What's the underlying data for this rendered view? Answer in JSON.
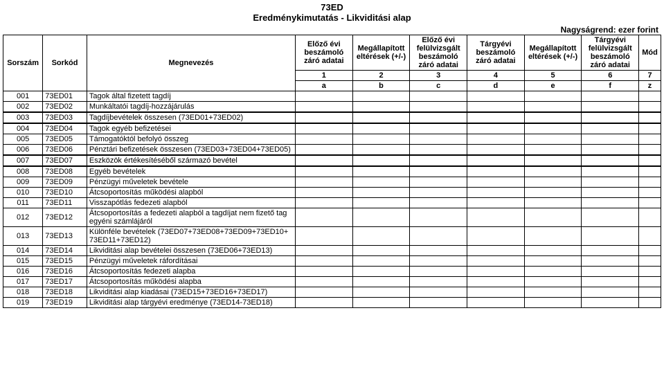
{
  "title": {
    "code": "73ED",
    "name": "Eredménykimutatás - Likviditási alap"
  },
  "unit_line": "Nagyságrend: ezer forint",
  "headers": {
    "sorszam": "Sorszám",
    "sorkod": "Sorkód",
    "megnevezes": "Megnevezés",
    "col1": "Előző évi beszámoló záró adatai",
    "col2": "Megállapított eltérések (+/-)",
    "col3": "Előző évi felülvizsgált beszámoló záró adatai",
    "col4": "Tárgyévi beszámoló záró adatai",
    "col5": "Megállapított eltérések (+/-)",
    "col6": "Tárgyévi felülvizsgált beszámoló záró adatai",
    "mod": "Mód"
  },
  "numrow": [
    "1",
    "2",
    "3",
    "4",
    "5",
    "6",
    "7"
  ],
  "letrow": [
    "a",
    "b",
    "c",
    "d",
    "e",
    "f",
    "z"
  ],
  "rows": [
    {
      "n": "001",
      "k": "73ED01",
      "m": "Tagok által fizetett tagdíj"
    },
    {
      "n": "002",
      "k": "73ED02",
      "m": "Munkáltatói tagdíj-hozzájárulás",
      "groupEnd": true
    },
    {
      "n": "003",
      "k": "73ED03",
      "m": "Tagdíjbevételek összesen (73ED01+73ED02)",
      "groupEnd": true
    },
    {
      "n": "004",
      "k": "73ED04",
      "m": "Tagok egyéb befizetései"
    },
    {
      "n": "005",
      "k": "73ED05",
      "m": "Támogatóktól befolyó összeg"
    },
    {
      "n": "006",
      "k": "73ED06",
      "m": "Pénztári befizetések összesen (73ED03+73ED04+73ED05)",
      "groupEnd": true
    },
    {
      "n": "007",
      "k": "73ED07",
      "m": "Eszközök értékesítéséből származó bevétel",
      "groupEnd": true
    },
    {
      "n": "008",
      "k": "73ED08",
      "m": "Egyéb bevételek"
    },
    {
      "n": "009",
      "k": "73ED09",
      "m": "Pénzügyi műveletek bevétele"
    },
    {
      "n": "010",
      "k": "73ED10",
      "m": "Átcsoportosítás működési alapból"
    },
    {
      "n": "011",
      "k": "73ED11",
      "m": "Visszapótlás fedezeti alapból"
    },
    {
      "n": "012",
      "k": "73ED12",
      "m": "Átcsoportosítás a fedezeti alapból a tagdíjat nem fizető tag egyéni számlájáról"
    },
    {
      "n": "013",
      "k": "73ED13",
      "m": "Különféle bevételek (73ED07+73ED08+73ED09+73ED10+ 73ED11+73ED12)"
    },
    {
      "n": "014",
      "k": "73ED14",
      "m": "Likviditási alap bevételei összesen (73ED06+73ED13)"
    },
    {
      "n": "015",
      "k": "73ED15",
      "m": "Pénzügyi műveletek ráfordításai"
    },
    {
      "n": "016",
      "k": "73ED16",
      "m": "Átcsoportosítás fedezeti alapba"
    },
    {
      "n": "017",
      "k": "73ED17",
      "m": "Átcsoportosítás működési alapba"
    },
    {
      "n": "018",
      "k": "73ED18",
      "m": "Likviditási alap kiadásai (73ED15+73ED16+73ED17)"
    },
    {
      "n": "019",
      "k": "73ED19",
      "m": "Likviditási alap tárgyévi eredménye (73ED14-73ED18)"
    }
  ]
}
